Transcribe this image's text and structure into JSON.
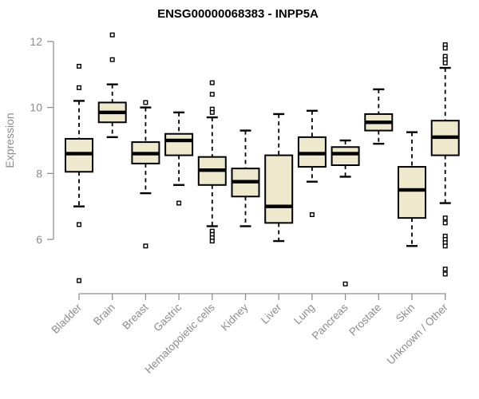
{
  "chart_data": {
    "type": "boxplot",
    "title": "ENSG00000068383 - INPP5A",
    "ylabel": "Expression",
    "yticks": [
      6,
      8,
      10,
      12
    ],
    "ylim": [
      4.4,
      12.4
    ],
    "grid": false,
    "legend": "none",
    "box_fill": "#EEE8CD",
    "box_stroke": "#000000",
    "axis_text_color": "#8C8C8C",
    "axis_line_color": "#909090",
    "categories": [
      "Bladder",
      "Brain",
      "Breast",
      "Gastric",
      "Hematopoietic cells",
      "Kidney",
      "Liver",
      "Lung",
      "Pancreas",
      "Prostate",
      "Skin",
      "Unknown / Other"
    ],
    "boxes": [
      {
        "label": "Bladder",
        "low": 7.0,
        "q1": 8.05,
        "median": 8.6,
        "q3": 9.05,
        "high": 10.2,
        "outliers": [
          11.25,
          10.6,
          6.45,
          4.75
        ]
      },
      {
        "label": "Brain",
        "low": 9.1,
        "q1": 9.55,
        "median": 9.85,
        "q3": 10.15,
        "high": 10.7,
        "outliers": [
          12.2,
          11.45
        ]
      },
      {
        "label": "Breast",
        "low": 7.4,
        "q1": 8.3,
        "median": 8.6,
        "q3": 8.95,
        "high": 10.0,
        "outliers": [
          10.15,
          5.8
        ]
      },
      {
        "label": "Gastric",
        "low": 7.65,
        "q1": 8.55,
        "median": 9.0,
        "q3": 9.2,
        "high": 9.85,
        "outliers": [
          7.1
        ]
      },
      {
        "label": "Hematopoietic cells",
        "low": 6.4,
        "q1": 7.65,
        "median": 8.1,
        "q3": 8.5,
        "high": 9.7,
        "outliers": [
          10.75,
          10.4,
          9.95,
          9.85,
          6.25,
          6.15,
          6.05,
          5.95
        ]
      },
      {
        "label": "Kidney",
        "low": 6.4,
        "q1": 7.3,
        "median": 7.75,
        "q3": 8.15,
        "high": 9.3,
        "outliers": []
      },
      {
        "label": "Liver",
        "low": 5.95,
        "q1": 6.5,
        "median": 7.0,
        "q3": 8.55,
        "high": 9.8,
        "outliers": []
      },
      {
        "label": "Lung",
        "low": 7.75,
        "q1": 8.2,
        "median": 8.6,
        "q3": 9.1,
        "high": 9.9,
        "outliers": [
          6.75
        ]
      },
      {
        "label": "Pancreas",
        "low": 7.9,
        "q1": 8.25,
        "median": 8.6,
        "q3": 8.8,
        "high": 9.0,
        "outliers": [
          4.65
        ]
      },
      {
        "label": "Prostate",
        "low": 8.9,
        "q1": 9.3,
        "median": 9.55,
        "q3": 9.8,
        "high": 10.55,
        "outliers": []
      },
      {
        "label": "Skin",
        "low": 5.8,
        "q1": 6.65,
        "median": 7.5,
        "q3": 8.2,
        "high": 9.25,
        "outliers": []
      },
      {
        "label": "Unknown / Other",
        "low": 7.1,
        "q1": 8.55,
        "median": 9.1,
        "q3": 9.6,
        "high": 11.2,
        "outliers": [
          11.9,
          11.8,
          11.55,
          11.45,
          11.35,
          6.65,
          6.5,
          6.1,
          6.0,
          5.9,
          5.8,
          5.1,
          4.95
        ]
      }
    ]
  }
}
